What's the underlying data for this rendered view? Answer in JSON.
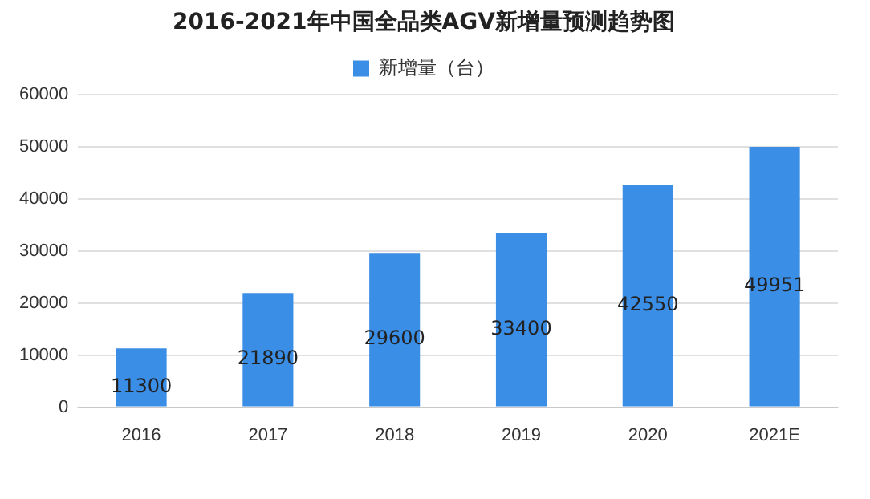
{
  "chart_data": {
    "type": "bar",
    "title": "2016-2021年中国全品类AGV新增量预测趋势图",
    "categories": [
      "2016",
      "2017",
      "2018",
      "2019",
      "2020",
      "2021E"
    ],
    "series": [
      {
        "name": "新增量（台）",
        "color": "#3a8ee6",
        "values": [
          11300,
          21890,
          29600,
          33400,
          42550,
          49951
        ]
      }
    ],
    "ylim": [
      0,
      60000
    ],
    "yticks": [
      0,
      10000,
      20000,
      30000,
      40000,
      50000,
      60000
    ],
    "grid": "y",
    "legend": "top",
    "data_labels": true
  }
}
